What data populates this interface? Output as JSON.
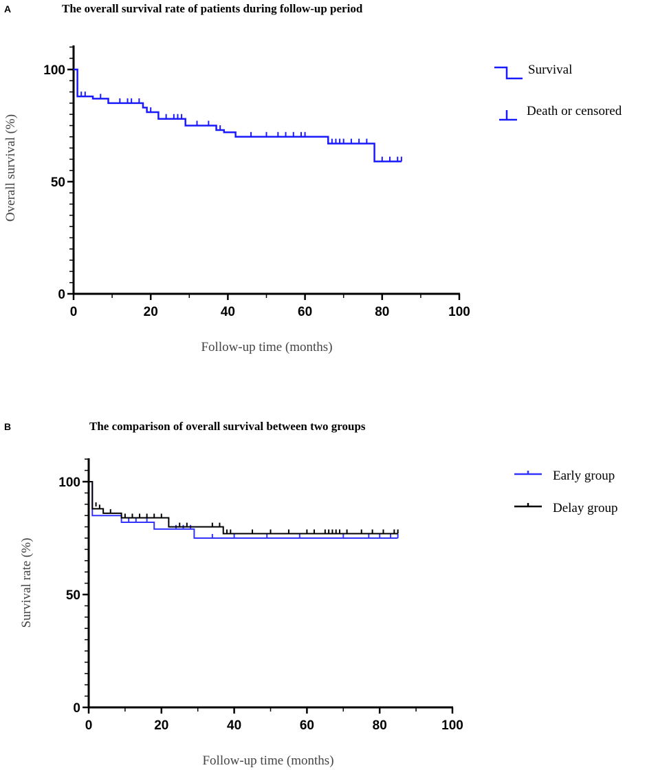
{
  "chart_data": [
    {
      "panel": "A",
      "type": "line",
      "title": "The overall survival rate of patients during follow-up period",
      "xlabel": "Follow-up time (months)",
      "ylabel": "Overall survival (%)",
      "xlim": [
        0,
        100
      ],
      "ylim": [
        0,
        110
      ],
      "xticks": [
        0,
        20,
        40,
        60,
        80,
        100
      ],
      "yticks": [
        0,
        50,
        100
      ],
      "legend": [
        "Survival",
        "Death or censored"
      ],
      "series": [
        {
          "name": "Survival",
          "color": "#1a1aff",
          "steps": [
            [
              0,
              100
            ],
            [
              1,
              88
            ],
            [
              5,
              87
            ],
            [
              9,
              85
            ],
            [
              18,
              83
            ],
            [
              19,
              81
            ],
            [
              22,
              78
            ],
            [
              28,
              78
            ],
            [
              29,
              75
            ],
            [
              36,
              75
            ],
            [
              37,
              73
            ],
            [
              39,
              72
            ],
            [
              42,
              70
            ],
            [
              66,
              70
            ],
            [
              66,
              67
            ],
            [
              78,
              67
            ],
            [
              78,
              59
            ],
            [
              85,
              59
            ]
          ],
          "censored": [
            [
              2,
              88
            ],
            [
              3,
              88
            ],
            [
              7,
              87
            ],
            [
              12,
              85
            ],
            [
              14,
              85
            ],
            [
              15,
              85
            ],
            [
              17,
              85
            ],
            [
              20,
              81
            ],
            [
              24,
              78
            ],
            [
              26,
              78
            ],
            [
              27,
              78
            ],
            [
              28,
              78
            ],
            [
              32,
              75
            ],
            [
              35,
              75
            ],
            [
              37,
              73
            ],
            [
              38,
              73
            ],
            [
              46,
              70
            ],
            [
              50,
              70
            ],
            [
              53,
              70
            ],
            [
              55,
              70
            ],
            [
              57,
              70
            ],
            [
              59,
              70
            ],
            [
              60,
              70
            ],
            [
              67,
              67
            ],
            [
              68,
              67
            ],
            [
              69,
              67
            ],
            [
              70,
              67
            ],
            [
              72,
              67
            ],
            [
              74,
              67
            ],
            [
              76,
              67
            ],
            [
              80,
              59
            ],
            [
              82,
              59
            ],
            [
              84,
              59
            ],
            [
              85,
              59
            ]
          ]
        }
      ]
    },
    {
      "panel": "B",
      "type": "line",
      "title": "The comparison of overall survival between two groups",
      "xlabel": "Follow-up time (months)",
      "ylabel": "Survival rate (%)",
      "xlim": [
        0,
        100
      ],
      "ylim": [
        0,
        110
      ],
      "xticks": [
        0,
        20,
        40,
        60,
        80,
        100
      ],
      "yticks": [
        0,
        50,
        100
      ],
      "legend": [
        "Early group",
        "Delay group"
      ],
      "series": [
        {
          "name": "Early group",
          "color": "#3333ff",
          "steps": [
            [
              0,
              100
            ],
            [
              1,
              85
            ],
            [
              9,
              82
            ],
            [
              18,
              79
            ],
            [
              29,
              75
            ],
            [
              85,
              75
            ]
          ],
          "censored": [
            [
              11,
              82
            ],
            [
              13,
              82
            ],
            [
              16,
              82
            ],
            [
              24,
              79
            ],
            [
              26,
              79
            ],
            [
              28,
              79
            ],
            [
              34,
              75
            ],
            [
              40,
              75
            ],
            [
              49,
              75
            ],
            [
              58,
              75
            ],
            [
              70,
              75
            ],
            [
              77,
              75
            ],
            [
              80,
              75
            ],
            [
              83,
              75
            ],
            [
              85,
              75
            ]
          ]
        },
        {
          "name": "Delay group",
          "color": "#000000",
          "steps": [
            [
              0,
              100
            ],
            [
              1,
              88
            ],
            [
              4,
              86
            ],
            [
              9,
              84
            ],
            [
              22,
              80
            ],
            [
              37,
              77
            ],
            [
              85,
              77
            ]
          ],
          "censored": [
            [
              2,
              89
            ],
            [
              3,
              88
            ],
            [
              6,
              86
            ],
            [
              10,
              84
            ],
            [
              12,
              84
            ],
            [
              14,
              84
            ],
            [
              16,
              84
            ],
            [
              18,
              84
            ],
            [
              20,
              84
            ],
            [
              25,
              80
            ],
            [
              27,
              80
            ],
            [
              34,
              80
            ],
            [
              36,
              80
            ],
            [
              38,
              77
            ],
            [
              39,
              77
            ],
            [
              45,
              77
            ],
            [
              50,
              77
            ],
            [
              55,
              77
            ],
            [
              60,
              77
            ],
            [
              62,
              77
            ],
            [
              65,
              77
            ],
            [
              66,
              77
            ],
            [
              67,
              77
            ],
            [
              68,
              77
            ],
            [
              69,
              77
            ],
            [
              71,
              77
            ],
            [
              75,
              77
            ],
            [
              78,
              77
            ],
            [
              81,
              77
            ],
            [
              84,
              77
            ],
            [
              85,
              77
            ]
          ]
        }
      ]
    }
  ]
}
